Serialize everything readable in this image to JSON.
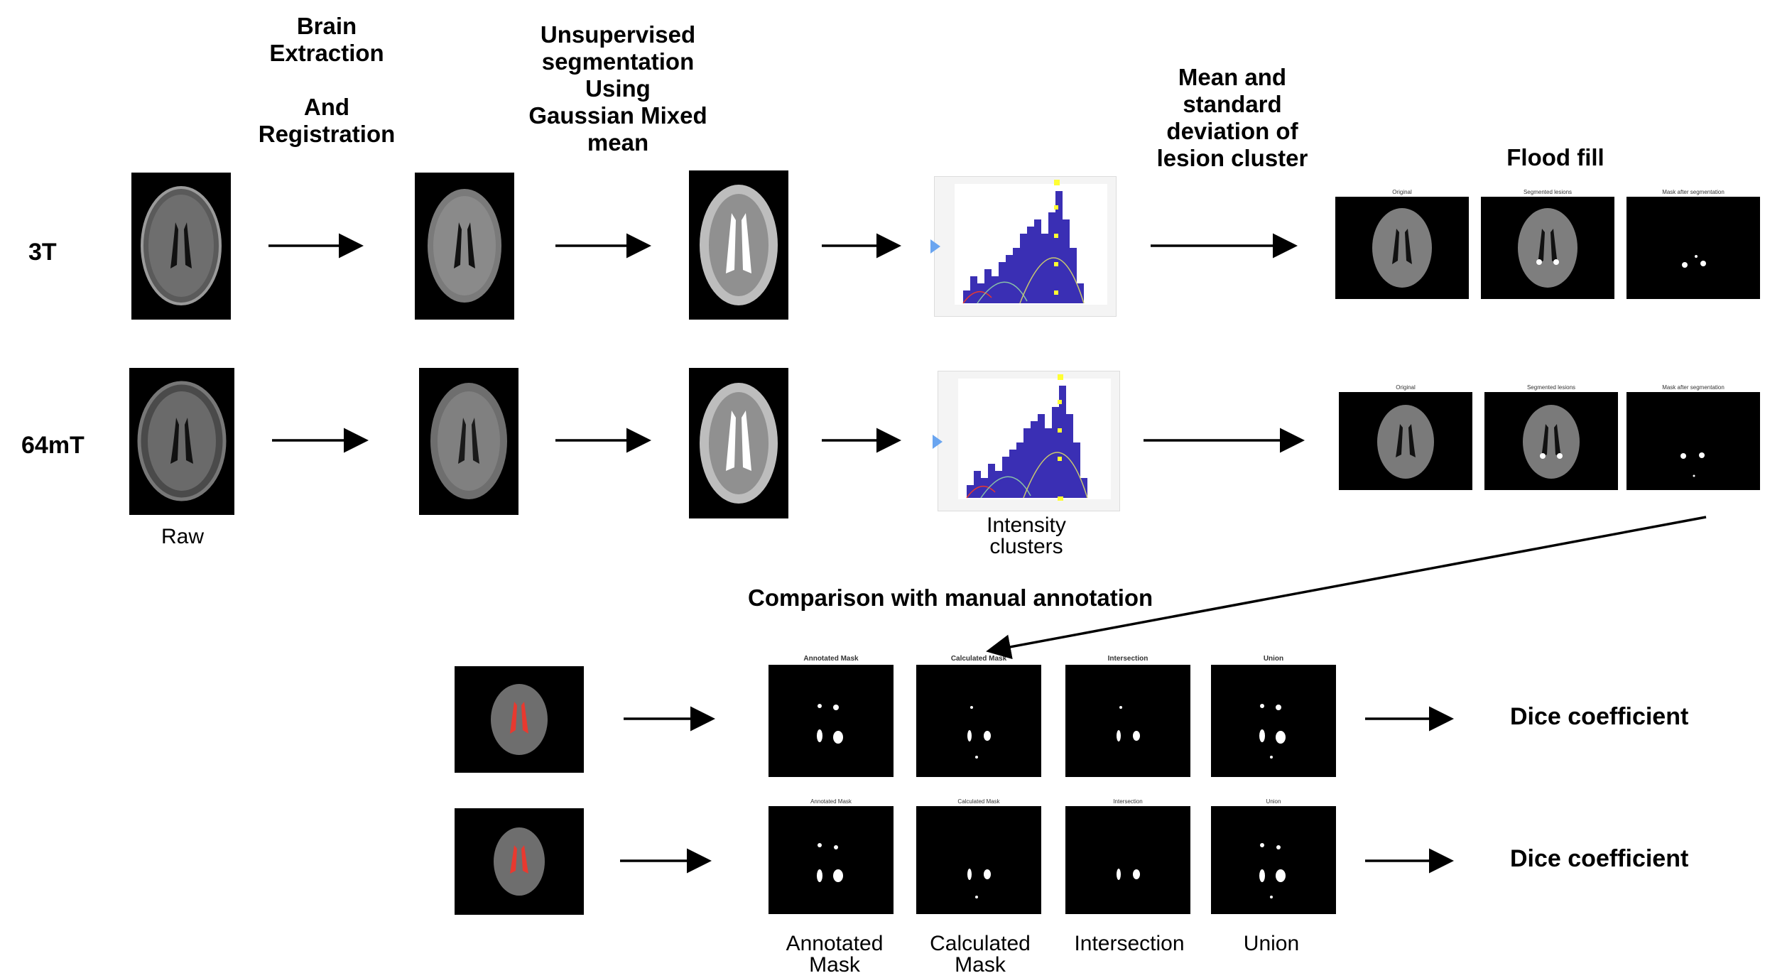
{
  "headers": {
    "brain_extraction": "Brain\nExtraction\n\nAnd\nRegistration",
    "unsupervised": "Unsupervised\nsegmentation\nUsing\nGaussian Mixed\nmean",
    "mean_std": "Mean and\nstandard\ndeviation of\nlesion cluster",
    "flood_fill": "Flood fill"
  },
  "rows": {
    "row1": "3T",
    "row2": "64mT"
  },
  "labels": {
    "raw": "Raw",
    "intensity": "Intensity\nclusters",
    "comparison": "Comparison with manual annotation",
    "dice1": "Dice coefficient",
    "dice2": "Dice coefficient",
    "annotated": "Annotated\nMask",
    "calculated": "Calculated\nMask",
    "intersection": "Intersection",
    "union": "Union"
  },
  "subplot_titles": {
    "original": "Original",
    "segmented": "Segmented lesions",
    "mask_after": "Mask after segmentation",
    "annotated_mask": "Annotated Mask",
    "calculated_mask": "Calculated Mask",
    "intersection": "Intersection",
    "union": "Union"
  },
  "colors": {
    "histogram_fill": "#3a2fb4",
    "marker": "#ffff33",
    "lesion_overlay": "#e8392f",
    "arrow": "#000000"
  }
}
